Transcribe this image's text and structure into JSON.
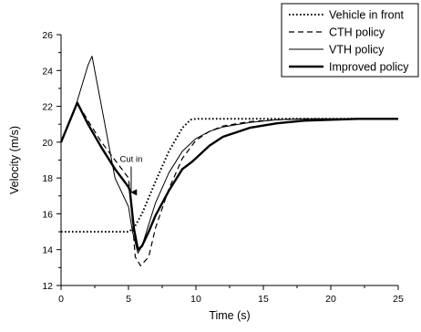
{
  "chart_data": {
    "type": "line",
    "title": "",
    "xlabel": "Time (s)",
    "ylabel": "Velocity (m/s)",
    "xlim": [
      0,
      25
    ],
    "ylim": [
      12,
      26
    ],
    "xticks": [
      0,
      5,
      10,
      15,
      20,
      25
    ],
    "yticks": [
      12,
      14,
      16,
      18,
      20,
      22,
      24,
      26
    ],
    "grid": false,
    "legend_position": "top-right",
    "series": [
      {
        "name": "Vehicle in front",
        "line_style": "dotted",
        "color": "#000000",
        "x": [
          0,
          5,
          5.4,
          6,
          7,
          8,
          9,
          9.6,
          10,
          12,
          15,
          20,
          25
        ],
        "y": [
          15,
          15,
          15.2,
          16.0,
          17.8,
          19.5,
          20.8,
          21.25,
          21.3,
          21.3,
          21.3,
          21.3,
          21.3
        ]
      },
      {
        "name": "CTH policy",
        "line_style": "dashed",
        "color": "#000000",
        "x": [
          0,
          1.2,
          2,
          3,
          4,
          5,
          5.2,
          5.5,
          5.9,
          6.5,
          7,
          8,
          9,
          10,
          11,
          12,
          14,
          16,
          18,
          20,
          22,
          25
        ],
        "y": [
          20.0,
          22.2,
          21.2,
          20.0,
          19.0,
          18.0,
          16.5,
          13.6,
          13.1,
          13.6,
          15.2,
          17.4,
          19.1,
          20.1,
          20.6,
          20.9,
          21.15,
          21.25,
          21.3,
          21.3,
          21.3,
          21.3
        ]
      },
      {
        "name": "VTH policy",
        "line_style": "solid-thin",
        "color": "#000000",
        "x": [
          0,
          1,
          2,
          2.3,
          3,
          4,
          5,
          5.3,
          5.7,
          6,
          6.5,
          7,
          8,
          9,
          10,
          11,
          12,
          14,
          16,
          18,
          20,
          22,
          25
        ],
        "y": [
          20.0,
          21.8,
          24.3,
          24.8,
          22.0,
          18.0,
          16.4,
          15.0,
          13.8,
          14.2,
          15.4,
          16.6,
          18.3,
          19.5,
          20.2,
          20.6,
          20.85,
          21.1,
          21.25,
          21.3,
          21.3,
          21.3,
          21.3
        ]
      },
      {
        "name": "Improved policy",
        "line_style": "solid-thick",
        "color": "#000000",
        "x": [
          0,
          1.2,
          2,
          3,
          4,
          5,
          5.1,
          5.4,
          5.7,
          6,
          6.5,
          7,
          8,
          9,
          9.7,
          10,
          11,
          12,
          14,
          16,
          18,
          20,
          22,
          25
        ],
        "y": [
          20.0,
          22.2,
          21.0,
          19.7,
          18.5,
          17.5,
          17.3,
          15.2,
          14.0,
          14.2,
          15.0,
          15.9,
          17.3,
          18.5,
          18.9,
          19.1,
          19.8,
          20.3,
          20.8,
          21.05,
          21.2,
          21.25,
          21.3,
          21.3
        ]
      }
    ],
    "annotations": [
      {
        "text": "Cut in",
        "x": 5.2,
        "y": 18.9,
        "arrow_to": [
          5.2,
          17.2
        ]
      }
    ]
  }
}
